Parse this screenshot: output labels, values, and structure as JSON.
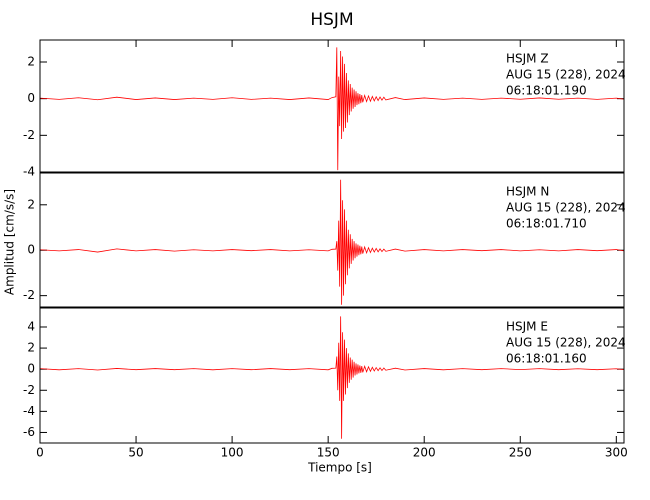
{
  "chart_data": {
    "type": "line",
    "title": "HSJM",
    "xlabel": "Tiempo [s]",
    "ylabel": "Amplitud [cm/s/s]",
    "xlim": [
      0,
      304
    ],
    "xticks": [
      0,
      50,
      100,
      150,
      200,
      250,
      300
    ],
    "x": [
      0,
      10,
      20,
      30,
      40,
      50,
      60,
      70,
      80,
      90,
      100,
      110,
      120,
      130,
      140,
      150,
      152,
      154,
      154.5,
      155,
      155.5,
      156,
      156.5,
      157,
      157.5,
      158,
      158.5,
      159,
      159.5,
      160,
      160.5,
      161,
      161.5,
      162,
      162.5,
      163,
      163.5,
      164,
      164.5,
      165,
      165.5,
      166,
      166.5,
      167,
      167.5,
      168,
      169,
      170,
      171,
      172,
      173,
      174,
      175,
      176,
      177,
      178,
      179,
      180,
      185,
      190,
      200,
      210,
      220,
      230,
      240,
      250,
      260,
      270,
      280,
      290,
      300,
      304
    ],
    "panels": [
      {
        "annotation": [
          "HSJM   Z",
          "AUG 15 (228), 2024",
          "06:18:01.190"
        ],
        "color": "#ff0000",
        "ylim": [
          -4,
          3.2
        ],
        "yticks": [
          -4,
          -2,
          0,
          2
        ],
        "values": [
          0.03,
          -0.04,
          0.05,
          -0.06,
          0.08,
          -0.05,
          0.04,
          -0.05,
          0.03,
          -0.04,
          0.05,
          -0.04,
          0.03,
          -0.05,
          0.04,
          -0.05,
          0.06,
          0.1,
          2.8,
          -3.9,
          1.2,
          -1.5,
          2.6,
          -2.2,
          2.3,
          -1.8,
          1.9,
          -1.6,
          1.4,
          -1.3,
          1.0,
          -0.9,
          0.8,
          -0.7,
          0.6,
          -0.55,
          0.5,
          -0.45,
          0.4,
          -0.35,
          0.3,
          -0.3,
          0.25,
          -0.25,
          0.2,
          -0.2,
          0.18,
          -0.16,
          0.15,
          -0.14,
          0.12,
          -0.12,
          0.1,
          -0.1,
          0.09,
          -0.08,
          0.08,
          -0.07,
          0.06,
          -0.05,
          0.04,
          -0.04,
          0.03,
          -0.04,
          0.03,
          -0.03,
          0.04,
          -0.03,
          0.03,
          -0.04,
          0.03,
          -0.03
        ]
      },
      {
        "annotation": [
          "HSJM   N",
          "AUG 15 (228), 2024",
          "06:18:01.710"
        ],
        "color": "#ff0000",
        "ylim": [
          -2.5,
          3.4
        ],
        "yticks": [
          -2,
          0,
          2
        ],
        "values": [
          0.02,
          -0.03,
          0.03,
          -0.08,
          0.06,
          -0.03,
          0.03,
          -0.04,
          0.02,
          -0.03,
          0.03,
          -0.02,
          0.03,
          -0.03,
          0.02,
          -0.03,
          0.04,
          0.05,
          0.4,
          -0.9,
          1.3,
          -1.6,
          3.1,
          -2.4,
          2.2,
          -2.0,
          1.8,
          -1.5,
          1.3,
          -1.1,
          0.9,
          -0.8,
          0.7,
          -0.6,
          0.5,
          -0.45,
          0.4,
          -0.35,
          0.3,
          -0.28,
          0.25,
          -0.22,
          0.2,
          -0.18,
          0.16,
          -0.15,
          0.14,
          -0.12,
          0.11,
          -0.1,
          0.09,
          -0.08,
          0.08,
          -0.07,
          0.06,
          -0.06,
          0.05,
          -0.05,
          0.05,
          -0.04,
          0.03,
          -0.03,
          0.03,
          -0.02,
          0.03,
          -0.03,
          0.02,
          -0.03,
          0.03,
          -0.02,
          0.03,
          -0.03
        ]
      },
      {
        "annotation": [
          "HSJM   E",
          "AUG 15 (228), 2024",
          "06:18:01.160"
        ],
        "color": "#ff0000",
        "ylim": [
          -7,
          5.8
        ],
        "yticks": [
          -6,
          -4,
          -2,
          0,
          2,
          4
        ],
        "values": [
          0.05,
          -0.06,
          0.05,
          -0.08,
          0.07,
          -0.05,
          0.06,
          -0.05,
          0.05,
          -0.06,
          0.05,
          -0.05,
          0.06,
          -0.05,
          0.05,
          -0.06,
          0.08,
          0.1,
          1.2,
          -2.0,
          2.5,
          -3.0,
          5.0,
          -6.6,
          3.5,
          -3.0,
          2.8,
          -2.4,
          2.0,
          -1.8,
          1.5,
          -1.3,
          1.1,
          -1.0,
          0.9,
          -0.8,
          0.7,
          -0.6,
          0.55,
          -0.5,
          0.45,
          -0.4,
          0.35,
          -0.35,
          0.3,
          -0.3,
          0.28,
          -0.25,
          0.22,
          -0.2,
          0.18,
          -0.17,
          0.15,
          -0.14,
          0.13,
          -0.12,
          0.11,
          -0.1,
          0.09,
          -0.08,
          0.06,
          -0.06,
          0.05,
          -0.05,
          0.05,
          -0.04,
          0.05,
          -0.05,
          0.04,
          -0.05,
          0.04,
          -0.04
        ]
      }
    ]
  }
}
